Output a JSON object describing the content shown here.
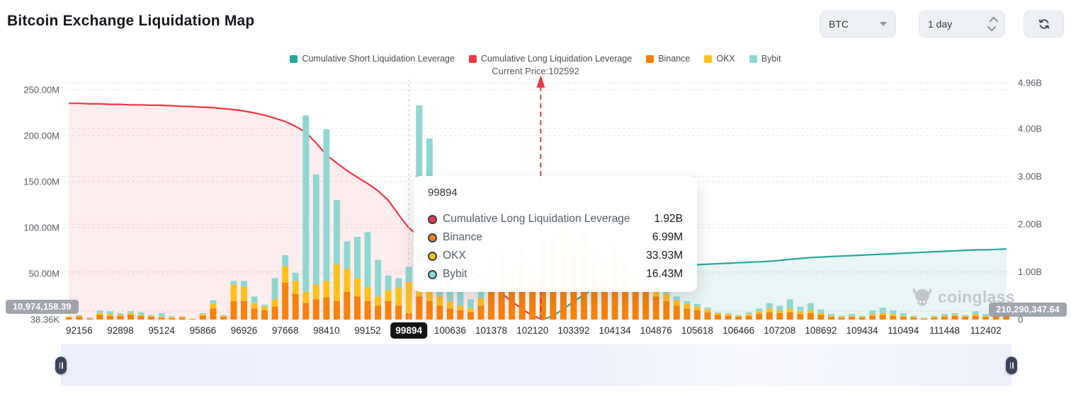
{
  "header": {
    "title": "Bitcoin Exchange Liquidation Map",
    "symbol_select": {
      "value": "BTC"
    },
    "interval_select": {
      "value": "1 day"
    }
  },
  "legend": {
    "items": [
      {
        "label": "Cumulative Short Liquidation Leverage",
        "color": "#26a69a"
      },
      {
        "label": "Cumulative Long Liquidation Leverage",
        "color": "#f23645"
      },
      {
        "label": "Binance",
        "color": "#f7820c"
      },
      {
        "label": "OKX",
        "color": "#ffc01e"
      },
      {
        "label": "Bybit",
        "color": "#8fd8d2"
      }
    ],
    "current_price_label": "Current Price:102592"
  },
  "tooltip": {
    "title": "99894",
    "rows": [
      {
        "label": "Cumulative Long Liquidation Leverage",
        "value": "1.92B",
        "color": "#f23645"
      },
      {
        "label": "Binance",
        "value": "6.99M",
        "color": "#f7820c"
      },
      {
        "label": "OKX",
        "value": "33.93M",
        "color": "#ffc01e"
      },
      {
        "label": "Bybit",
        "value": "16.43M",
        "color": "#8fd8d2"
      }
    ]
  },
  "badges": {
    "left": "10,974,158.39",
    "right": "210,290,347.64"
  },
  "watermark": "coinglass",
  "chart_data": {
    "type": "bar",
    "title": "Bitcoin Exchange Liquidation Map",
    "num_slots": 92,
    "left_axis": {
      "unit": "M",
      "tick_labels": [
        "250.00M",
        "200.00M",
        "150.00M",
        "100.00M",
        "50.00M",
        "38.36K"
      ],
      "tick_values_M": [
        250,
        200,
        150,
        100,
        50,
        0
      ]
    },
    "right_axis": {
      "unit": "B",
      "tick_labels": [
        "4.96B",
        "4.00B",
        "3.00B",
        "2.00B",
        "1.00B",
        "0"
      ],
      "tick_values_B": [
        4.96,
        4,
        3,
        2,
        1,
        0
      ]
    },
    "x_tick_labels": [
      "92156",
      "92898",
      "95124",
      "95866",
      "96926",
      "97668",
      "98410",
      "99152",
      "99894",
      "100636",
      "101378",
      "102120",
      "103392",
      "104134",
      "104876",
      "105618",
      "106466",
      "107208",
      "108692",
      "109434",
      "110494",
      "111448",
      "112402"
    ],
    "x_tick_slots": [
      1,
      5,
      9,
      13,
      17,
      21,
      25,
      29,
      33,
      37,
      41,
      45,
      49,
      53,
      57,
      61,
      65,
      69,
      73,
      77,
      81,
      85,
      89
    ],
    "selected_tick": "99894",
    "selected_tick_index": 8,
    "crosshair_slot": 33,
    "current_price": 102592,
    "current_price_slot": 45.8,
    "bars": {
      "unit": "M",
      "series": [
        {
          "name": "Binance",
          "color": "#f7820c",
          "values": [
            2,
            3,
            1,
            5,
            4,
            4,
            5,
            4,
            3,
            2,
            1.5,
            2,
            0.5,
            4,
            12,
            3,
            20,
            20,
            12,
            10,
            14,
            40,
            28,
            18,
            22,
            24,
            20,
            30,
            25,
            20,
            15,
            20,
            15,
            6.99,
            25,
            20,
            15,
            12,
            10,
            8,
            15,
            30,
            45,
            35,
            50,
            40,
            55,
            60,
            70,
            55,
            65,
            50,
            45,
            55,
            40,
            35,
            30,
            25,
            20,
            15,
            12,
            10,
            8,
            5,
            4,
            3,
            4,
            6,
            8,
            7,
            8,
            6,
            7,
            5,
            3,
            2,
            3,
            2,
            4,
            5,
            4,
            3,
            2,
            1,
            2,
            3,
            4,
            3,
            4,
            3,
            4,
            5
          ]
        },
        {
          "name": "OKX",
          "color": "#ffc01e",
          "values": [
            1,
            1,
            0.5,
            2,
            2,
            1,
            2,
            1,
            1,
            1,
            1,
            1,
            0.3,
            2,
            5,
            1,
            18,
            16,
            6,
            4,
            8,
            18,
            14,
            12,
            16,
            18,
            40,
            25,
            20,
            15,
            10,
            12,
            20,
            33.93,
            15,
            12,
            10,
            8,
            5,
            4,
            8,
            10,
            15,
            12,
            18,
            15,
            20,
            22,
            25,
            20,
            22,
            18,
            15,
            20,
            14,
            12,
            10,
            8,
            8,
            6,
            5,
            4,
            3,
            2,
            2,
            1,
            2,
            3,
            4,
            3,
            4,
            3,
            3,
            2,
            1,
            1,
            1,
            1,
            2,
            2,
            2,
            1,
            1,
            0.5,
            1,
            1,
            1,
            1,
            2,
            1,
            1,
            1
          ]
        },
        {
          "name": "Bybit",
          "color": "#8fd8d2",
          "values": [
            0,
            1,
            0.5,
            3,
            3,
            2,
            2,
            3,
            1,
            4,
            1,
            0.5,
            0.2,
            1,
            4,
            1,
            4,
            6,
            7,
            2,
            23,
            12,
            9,
            192,
            120,
            165,
            70,
            30,
            45,
            60,
            40,
            16,
            10,
            16.43,
            193,
            165,
            35,
            25,
            15,
            10,
            12,
            28,
            15,
            10,
            12,
            8,
            10,
            12,
            15,
            10,
            12,
            8,
            8,
            10,
            8,
            6,
            5,
            5,
            4,
            4,
            3,
            3,
            2,
            1,
            1,
            1,
            2,
            3,
            6,
            5,
            10,
            5,
            8,
            4,
            2,
            1,
            2,
            1,
            4,
            6,
            4,
            3,
            1,
            0.5,
            1,
            2,
            2,
            1,
            3,
            2,
            2,
            1
          ]
        }
      ]
    },
    "lines": [
      {
        "name": "Cumulative Long Liquidation Leverage",
        "color": "#f23645",
        "fill": "rgba(242,54,69,0.09)",
        "unit": "B",
        "start_slot": 0,
        "values": [
          4.53,
          4.53,
          4.52,
          4.52,
          4.51,
          4.51,
          4.5,
          4.5,
          4.49,
          4.49,
          4.48,
          4.47,
          4.46,
          4.45,
          4.44,
          4.42,
          4.4,
          4.37,
          4.33,
          4.28,
          4.22,
          4.15,
          4.05,
          3.92,
          3.7,
          3.45,
          3.28,
          3.12,
          2.98,
          2.85,
          2.7,
          2.5,
          2.2,
          1.92,
          1.75,
          1.58,
          1.42,
          1.28,
          1.15,
          1.02,
          0.88,
          0.72,
          0.55,
          0.38,
          0.22,
          0.08,
          0.0
        ]
      },
      {
        "name": "Cumulative Short Liquidation Leverage",
        "color": "#26a69a",
        "fill": "rgba(38,166,154,0.10)",
        "unit": "B",
        "start_slot": 46,
        "values": [
          0.0,
          0.08,
          0.22,
          0.38,
          0.52,
          0.65,
          0.76,
          0.85,
          0.92,
          0.98,
          1.03,
          1.07,
          1.1,
          1.12,
          1.14,
          1.15,
          1.16,
          1.17,
          1.18,
          1.19,
          1.2,
          1.21,
          1.22,
          1.24,
          1.26,
          1.28,
          1.3,
          1.31,
          1.32,
          1.33,
          1.34,
          1.35,
          1.36,
          1.37,
          1.38,
          1.39,
          1.4,
          1.41,
          1.42,
          1.43,
          1.44,
          1.45,
          1.46,
          1.46,
          1.47,
          1.48
        ]
      }
    ]
  }
}
